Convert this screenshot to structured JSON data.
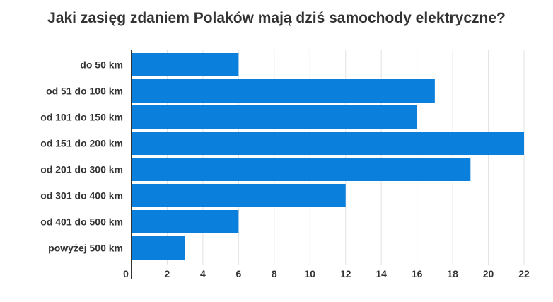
{
  "chart_data": {
    "type": "bar",
    "orientation": "horizontal",
    "title": "Jaki zasięg zdaniem Polaków mają dziś samochody elektryczne?",
    "xlabel": "",
    "ylabel": "",
    "categories": [
      "do 50 km",
      "od 51 do 100 km",
      "od 101 do 150 km",
      "od 151 do 200 km",
      "od 201 do 300 km",
      "od 301 do 400 km",
      "od 401 do 500 km",
      "powyżej 500 km"
    ],
    "values": [
      6,
      17,
      16,
      22,
      19,
      12,
      6,
      3
    ],
    "xlim": [
      0,
      22
    ],
    "ticks": [
      "0",
      "2",
      "4",
      "6",
      "8",
      "10",
      "12",
      "14",
      "16",
      "18",
      "20",
      "22"
    ],
    "bar_color": "#0a7fdc",
    "grid": "vertical",
    "legend": "none"
  }
}
